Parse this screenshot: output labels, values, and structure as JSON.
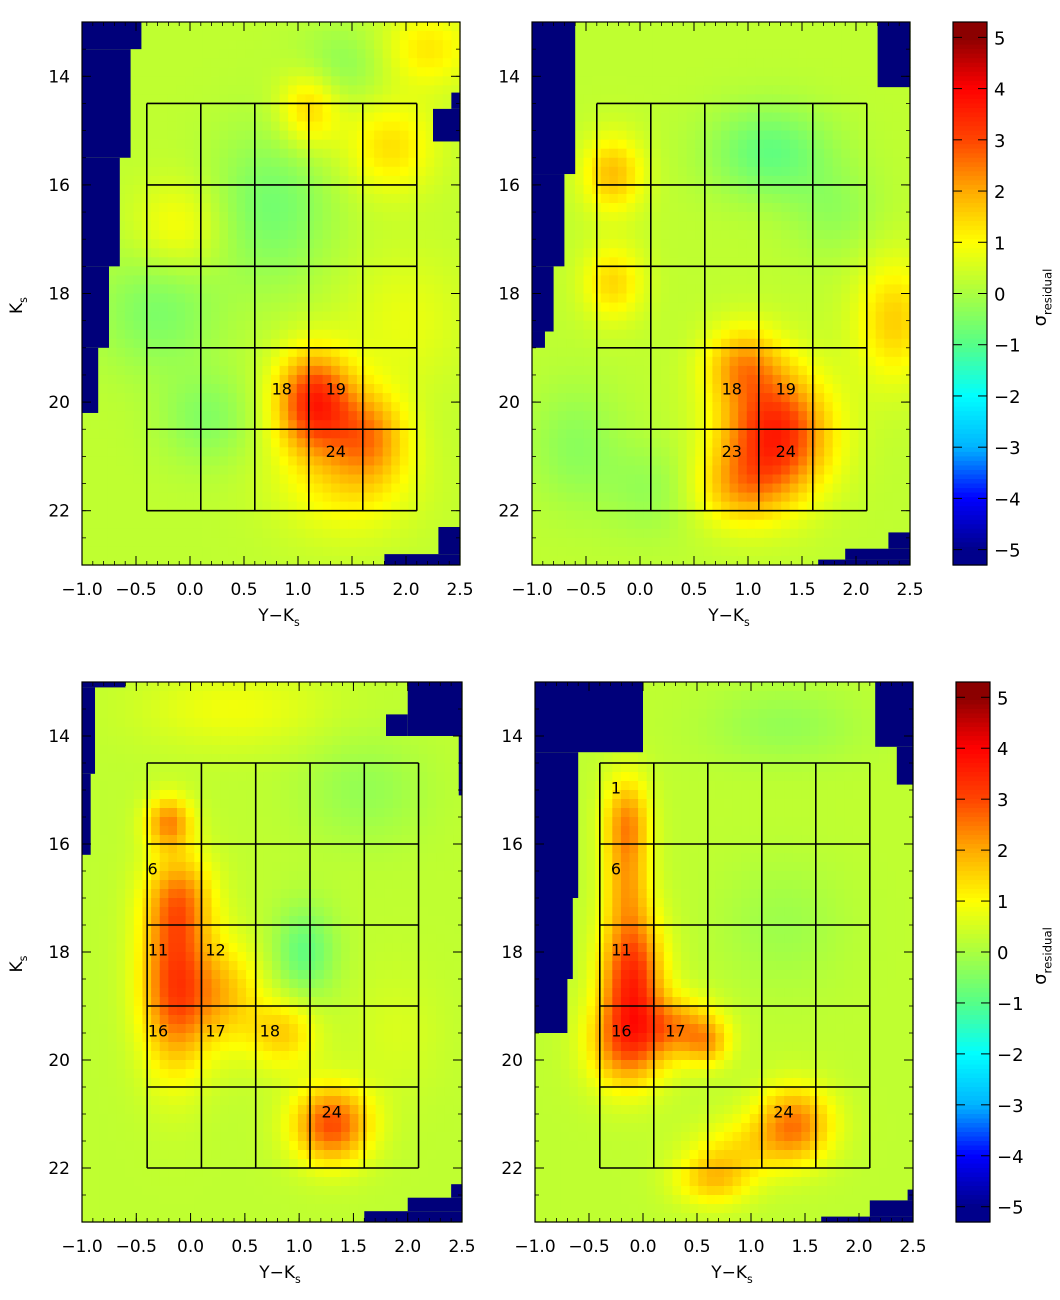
{
  "figure": {
    "colorbar_label": "σ",
    "colorbar_label_sub": "residual",
    "colorbar_ticks": [
      "5",
      "4",
      "3",
      "2",
      "1",
      "0",
      "−1",
      "−2",
      "−3",
      "−4",
      "−5"
    ],
    "colors": {
      "frame": "#000000",
      "mask": "#00007a",
      "bg": "#ffffff"
    },
    "colormap": [
      "#00008b",
      "#0000ff",
      "#00b4ff",
      "#00ffff",
      "#55ff88",
      "#aaff40",
      "#ffff00",
      "#ffaa00",
      "#ff4400",
      "#ff0000",
      "#8b0000"
    ]
  },
  "chart_data": [
    {
      "type": "heatmap",
      "panel": "top-left",
      "xlabel": "Y−K",
      "xlabel_sub": "s",
      "ylabel": "K",
      "ylabel_sub": "s",
      "xlim": [
        -1.0,
        2.5
      ],
      "ylim": [
        23,
        13
      ],
      "x_ticks": [
        "−1.0",
        "−0.5",
        "0.0",
        "0.5",
        "1.0",
        "1.5",
        "2.0",
        "2.5"
      ],
      "y_ticks": [
        "14",
        "16",
        "18",
        "20",
        "22"
      ],
      "grid_x": [
        -0.4,
        0.1,
        0.6,
        1.1,
        1.6,
        2.1
      ],
      "grid_y": [
        14.5,
        16.0,
        17.5,
        19.0,
        20.5,
        22.0
      ],
      "cell_labels": [
        {
          "text": "18",
          "x": 0.85,
          "y": 19.75
        },
        {
          "text": "19",
          "x": 1.35,
          "y": 19.75
        },
        {
          "text": "24",
          "x": 1.35,
          "y": 20.9
        }
      ],
      "colorbar": true,
      "masks": [
        {
          "x0": -1.0,
          "x1": -0.45,
          "y0": 13.0,
          "y1": 13.5
        },
        {
          "x0": -1.0,
          "x1": -0.55,
          "y0": 13.5,
          "y1": 15.5
        },
        {
          "x0": -1.0,
          "x1": -0.65,
          "y0": 15.5,
          "y1": 17.5
        },
        {
          "x0": -1.0,
          "x1": -0.75,
          "y0": 17.5,
          "y1": 19.0
        },
        {
          "x0": -1.0,
          "x1": -0.85,
          "y0": 19.0,
          "y1": 20.2
        },
        {
          "x0": 2.25,
          "x1": 2.5,
          "y0": 14.6,
          "y1": 15.2
        },
        {
          "x0": 2.42,
          "x1": 2.5,
          "y0": 14.3,
          "y1": 14.6
        },
        {
          "x0": 1.8,
          "x1": 2.5,
          "y0": 22.8,
          "y1": 23.0
        },
        {
          "x0": 2.3,
          "x1": 2.5,
          "y0": 22.3,
          "y1": 22.8
        }
      ],
      "blobs": [
        {
          "x": 1.15,
          "y": 20.0,
          "sx": 0.25,
          "sy": 0.65,
          "a": 3.2
        },
        {
          "x": 1.65,
          "y": 20.6,
          "sx": 0.25,
          "sy": 0.6,
          "a": 1.8
        },
        {
          "x": 1.45,
          "y": 21.5,
          "sx": 0.45,
          "sy": 0.7,
          "a": 0.9
        },
        {
          "x": 1.1,
          "y": 14.6,
          "sx": 0.2,
          "sy": 0.5,
          "a": 1.3
        },
        {
          "x": 1.85,
          "y": 15.3,
          "sx": 0.3,
          "sy": 0.6,
          "a": 1.1
        },
        {
          "x": 2.2,
          "y": 13.5,
          "sx": 0.3,
          "sy": 0.5,
          "a": 1.0
        },
        {
          "x": -0.1,
          "y": 16.8,
          "sx": 0.3,
          "sy": 0.6,
          "a": 0.8
        },
        {
          "x": -0.3,
          "y": 18.3,
          "sx": 0.4,
          "sy": 0.8,
          "a": -0.8
        },
        {
          "x": 0.75,
          "y": 16.4,
          "sx": 0.4,
          "sy": 1.0,
          "a": -0.9
        },
        {
          "x": 0.15,
          "y": 20.3,
          "sx": 0.3,
          "sy": 0.6,
          "a": -0.7
        },
        {
          "x": 1.4,
          "y": 13.8,
          "sx": 0.3,
          "sy": 0.5,
          "a": -0.6
        },
        {
          "x": 2.0,
          "y": 18.5,
          "sx": 0.4,
          "sy": 0.9,
          "a": 0.5
        }
      ]
    },
    {
      "type": "heatmap",
      "panel": "top-right",
      "xlabel": "Y−K",
      "xlabel_sub": "s",
      "ylabel": "",
      "ylabel_sub": "",
      "xlim": [
        -1.0,
        2.5
      ],
      "ylim": [
        23,
        13
      ],
      "x_ticks": [
        "−1.0",
        "−0.5",
        "0.0",
        "0.5",
        "1.0",
        "1.5",
        "2.0",
        "2.5"
      ],
      "y_ticks": [
        "14",
        "16",
        "18",
        "20",
        "22"
      ],
      "grid_x": [
        -0.4,
        0.1,
        0.6,
        1.1,
        1.6,
        2.1
      ],
      "grid_y": [
        14.5,
        16.0,
        17.5,
        19.0,
        20.5,
        22.0
      ],
      "cell_labels": [
        {
          "text": "18",
          "x": 0.85,
          "y": 19.75
        },
        {
          "text": "19",
          "x": 1.35,
          "y": 19.75
        },
        {
          "text": "23",
          "x": 0.85,
          "y": 20.9
        },
        {
          "text": "24",
          "x": 1.35,
          "y": 20.9
        }
      ],
      "colorbar": true,
      "masks": [
        {
          "x0": -1.0,
          "x1": -0.6,
          "y0": 13.0,
          "y1": 15.8
        },
        {
          "x0": -1.0,
          "x1": -0.7,
          "y0": 15.8,
          "y1": 17.5
        },
        {
          "x0": -1.0,
          "x1": -0.8,
          "y0": 17.5,
          "y1": 18.7
        },
        {
          "x0": -1.0,
          "x1": -0.88,
          "y0": 18.7,
          "y1": 19.0
        },
        {
          "x0": 2.2,
          "x1": 2.5,
          "y0": 13.0,
          "y1": 14.2
        },
        {
          "x0": 1.65,
          "x1": 2.5,
          "y0": 22.9,
          "y1": 23.0
        },
        {
          "x0": 1.9,
          "x1": 2.5,
          "y0": 22.7,
          "y1": 22.9
        },
        {
          "x0": 2.3,
          "x1": 2.5,
          "y0": 22.4,
          "y1": 22.7
        }
      ],
      "blobs": [
        {
          "x": 1.25,
          "y": 20.6,
          "sx": 0.35,
          "sy": 0.8,
          "a": 3.3
        },
        {
          "x": 0.95,
          "y": 19.3,
          "sx": 0.25,
          "sy": 0.5,
          "a": 1.6
        },
        {
          "x": 0.9,
          "y": 21.6,
          "sx": 0.3,
          "sy": 0.5,
          "a": 1.2
        },
        {
          "x": -0.25,
          "y": 15.8,
          "sx": 0.2,
          "sy": 0.5,
          "a": 1.5
        },
        {
          "x": -0.25,
          "y": 17.8,
          "sx": 0.2,
          "sy": 0.5,
          "a": 1.2
        },
        {
          "x": 2.35,
          "y": 18.5,
          "sx": 0.25,
          "sy": 0.8,
          "a": 1.3
        },
        {
          "x": 1.2,
          "y": 15.4,
          "sx": 0.4,
          "sy": 0.6,
          "a": -1.1
        },
        {
          "x": 1.8,
          "y": 16.5,
          "sx": 0.3,
          "sy": 0.6,
          "a": -0.5
        },
        {
          "x": -0.6,
          "y": 20.8,
          "sx": 0.3,
          "sy": 0.8,
          "a": -0.6
        },
        {
          "x": 0.1,
          "y": 21.6,
          "sx": 0.3,
          "sy": 0.6,
          "a": -0.5
        }
      ]
    },
    {
      "type": "heatmap",
      "panel": "bottom-left",
      "xlabel": "Y−K",
      "xlabel_sub": "s",
      "ylabel": "K",
      "ylabel_sub": "s",
      "xlim": [
        -1.0,
        2.5
      ],
      "ylim": [
        23,
        13
      ],
      "x_ticks": [
        "−1.0",
        "−0.5",
        "0.0",
        "0.5",
        "1.0",
        "1.5",
        "2.0",
        "2.5"
      ],
      "y_ticks": [
        "14",
        "16",
        "18",
        "20",
        "22"
      ],
      "grid_x": [
        -0.4,
        0.1,
        0.6,
        1.1,
        1.6,
        2.1
      ],
      "grid_y": [
        14.5,
        16.0,
        17.5,
        19.0,
        20.5,
        22.0
      ],
      "cell_labels": [
        {
          "text": "6",
          "x": -0.35,
          "y": 16.45
        },
        {
          "text": "11",
          "x": -0.3,
          "y": 17.95
        },
        {
          "text": "12",
          "x": 0.23,
          "y": 17.95
        },
        {
          "text": "16",
          "x": -0.3,
          "y": 19.45
        },
        {
          "text": "17",
          "x": 0.23,
          "y": 19.45
        },
        {
          "text": "18",
          "x": 0.73,
          "y": 19.45
        },
        {
          "text": "24",
          "x": 1.3,
          "y": 20.95
        }
      ],
      "colorbar": false,
      "masks": [
        {
          "x0": -1.0,
          "x1": -0.6,
          "y0": 13.0,
          "y1": 13.1
        },
        {
          "x0": -1.0,
          "x1": -0.88,
          "y0": 13.1,
          "y1": 14.7
        },
        {
          "x0": -1.0,
          "x1": -0.92,
          "y0": 14.7,
          "y1": 16.2
        },
        {
          "x0": 2.0,
          "x1": 2.5,
          "y0": 13.0,
          "y1": 14.0
        },
        {
          "x0": 1.8,
          "x1": 2.0,
          "y0": 13.6,
          "y1": 14.0
        },
        {
          "x0": 2.47,
          "x1": 2.5,
          "y0": 14.0,
          "y1": 15.1
        },
        {
          "x0": 1.6,
          "x1": 2.5,
          "y0": 22.8,
          "y1": 23.0
        },
        {
          "x0": 2.0,
          "x1": 2.5,
          "y0": 22.55,
          "y1": 22.8
        },
        {
          "x0": 2.4,
          "x1": 2.5,
          "y0": 22.3,
          "y1": 22.55
        }
      ],
      "blobs": [
        {
          "x": -0.15,
          "y": 18.6,
          "sx": 0.22,
          "sy": 1.1,
          "a": 2.7
        },
        {
          "x": -0.1,
          "y": 17.0,
          "sx": 0.22,
          "sy": 0.6,
          "a": 1.6
        },
        {
          "x": -0.2,
          "y": 15.6,
          "sx": 0.15,
          "sy": 0.35,
          "a": 2.0
        },
        {
          "x": 0.3,
          "y": 18.8,
          "sx": 0.25,
          "sy": 0.7,
          "a": 1.4
        },
        {
          "x": 0.85,
          "y": 19.5,
          "sx": 0.22,
          "sy": 0.45,
          "a": 1.3
        },
        {
          "x": 1.3,
          "y": 21.2,
          "sx": 0.25,
          "sy": 0.5,
          "a": 2.7
        },
        {
          "x": 1.05,
          "y": 18.0,
          "sx": 0.2,
          "sy": 0.6,
          "a": -1.1
        },
        {
          "x": 0.4,
          "y": 13.5,
          "sx": 0.6,
          "sy": 0.5,
          "a": 0.6
        },
        {
          "x": 1.6,
          "y": 15.0,
          "sx": 0.4,
          "sy": 0.7,
          "a": -0.5
        },
        {
          "x": 1.9,
          "y": 19.5,
          "sx": 0.3,
          "sy": 0.8,
          "a": 0.3
        }
      ]
    },
    {
      "type": "heatmap",
      "panel": "bottom-right",
      "xlabel": "Y−K",
      "xlabel_sub": "s",
      "ylabel": "",
      "ylabel_sub": "",
      "xlim": [
        -1.0,
        2.5
      ],
      "ylim": [
        23,
        13
      ],
      "x_ticks": [
        "−1.0",
        "−0.5",
        "0.0",
        "0.5",
        "1.0",
        "1.5",
        "2.0",
        "2.5"
      ],
      "y_ticks": [
        "14",
        "16",
        "18",
        "20",
        "22"
      ],
      "grid_x": [
        -0.4,
        0.1,
        0.6,
        1.1,
        1.6,
        2.1
      ],
      "grid_y": [
        14.5,
        16.0,
        17.5,
        19.0,
        20.5,
        22.0
      ],
      "cell_labels": [
        {
          "text": "1",
          "x": -0.25,
          "y": 14.95
        },
        {
          "text": "6",
          "x": -0.25,
          "y": 16.45
        },
        {
          "text": "11",
          "x": -0.2,
          "y": 17.95
        },
        {
          "text": "16",
          "x": -0.2,
          "y": 19.45
        },
        {
          "text": "17",
          "x": 0.3,
          "y": 19.45
        },
        {
          "text": "24",
          "x": 1.3,
          "y": 20.95
        }
      ],
      "colorbar": true,
      "masks": [
        {
          "x0": -1.0,
          "x1": 0.0,
          "y0": 13.0,
          "y1": 14.3
        },
        {
          "x0": -1.0,
          "x1": -0.6,
          "y0": 14.3,
          "y1": 17.0
        },
        {
          "x0": -1.0,
          "x1": -0.65,
          "y0": 17.0,
          "y1": 18.5
        },
        {
          "x0": -1.0,
          "x1": -0.7,
          "y0": 18.5,
          "y1": 19.5
        },
        {
          "x0": 2.15,
          "x1": 2.5,
          "y0": 13.0,
          "y1": 14.2
        },
        {
          "x0": 2.35,
          "x1": 2.5,
          "y0": 14.2,
          "y1": 14.9
        },
        {
          "x0": 1.65,
          "x1": 2.5,
          "y0": 22.9,
          "y1": 23.0
        },
        {
          "x0": 2.1,
          "x1": 2.5,
          "y0": 22.6,
          "y1": 22.9
        },
        {
          "x0": 2.45,
          "x1": 2.5,
          "y0": 22.4,
          "y1": 22.6
        }
      ],
      "blobs": [
        {
          "x": -0.1,
          "y": 18.4,
          "sx": 0.2,
          "sy": 0.8,
          "a": 3.0
        },
        {
          "x": -0.15,
          "y": 15.6,
          "sx": 0.15,
          "sy": 0.6,
          "a": 2.0
        },
        {
          "x": -0.15,
          "y": 16.8,
          "sx": 0.15,
          "sy": 0.6,
          "a": 1.3
        },
        {
          "x": -0.15,
          "y": 19.7,
          "sx": 0.25,
          "sy": 0.6,
          "a": 2.2
        },
        {
          "x": 0.35,
          "y": 19.4,
          "sx": 0.25,
          "sy": 0.4,
          "a": 1.7
        },
        {
          "x": 0.6,
          "y": 19.7,
          "sx": 0.15,
          "sy": 0.3,
          "a": 1.2
        },
        {
          "x": 1.4,
          "y": 21.2,
          "sx": 0.25,
          "sy": 0.5,
          "a": 2.2
        },
        {
          "x": 0.65,
          "y": 22.2,
          "sx": 0.25,
          "sy": 0.35,
          "a": 1.4
        },
        {
          "x": 0.9,
          "y": 21.6,
          "sx": 0.3,
          "sy": 0.4,
          "a": 0.8
        },
        {
          "x": 1.3,
          "y": 13.8,
          "sx": 0.5,
          "sy": 0.5,
          "a": -0.5
        },
        {
          "x": 1.3,
          "y": 17.5,
          "sx": 0.4,
          "sy": 0.8,
          "a": -0.4
        }
      ]
    }
  ]
}
